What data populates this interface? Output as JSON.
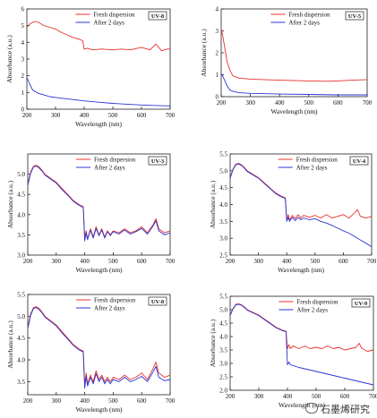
{
  "colors": {
    "fresh": "#e8302a",
    "after": "#2a35d4",
    "axis": "#222222"
  },
  "watermark": {
    "text": "石墨烯研究",
    "icon": "wechat-icon"
  },
  "chart_data": [
    {
      "type": "line",
      "id": "uv8",
      "badge": "UV-8",
      "xlabel": "Wavelength (nm)",
      "ylabel": "Absorbance (a.u.)",
      "xlim": [
        200,
        700
      ],
      "ylim": [
        0,
        6
      ],
      "xticks": [
        200,
        300,
        400,
        500,
        600,
        700
      ],
      "yticks": [
        0,
        1,
        2,
        3,
        4,
        5,
        6
      ],
      "legend": "top-right",
      "grid": false,
      "series": [
        {
          "name": "Fresh dispersion",
          "color": "fresh",
          "x": [
            200,
            210,
            220,
            230,
            240,
            250,
            260,
            280,
            300,
            320,
            340,
            360,
            380,
            395,
            400,
            410,
            430,
            460,
            500,
            530,
            560,
            600,
            630,
            650,
            670,
            690,
            700
          ],
          "y": [
            4.9,
            5.1,
            5.2,
            5.25,
            5.2,
            5.1,
            5.0,
            4.9,
            4.8,
            4.6,
            4.45,
            4.3,
            4.2,
            4.1,
            3.6,
            3.65,
            3.55,
            3.6,
            3.55,
            3.6,
            3.55,
            3.7,
            3.55,
            3.9,
            3.5,
            3.6,
            3.6
          ]
        },
        {
          "name": "After 2 days",
          "color": "after",
          "x": [
            200,
            210,
            220,
            240,
            260,
            280,
            300,
            350,
            400,
            450,
            500,
            550,
            600,
            650,
            700
          ],
          "y": [
            1.9,
            1.5,
            1.15,
            0.95,
            0.85,
            0.75,
            0.7,
            0.6,
            0.5,
            0.42,
            0.35,
            0.3,
            0.25,
            0.22,
            0.2
          ]
        }
      ]
    },
    {
      "type": "line",
      "id": "uv5",
      "badge": "UV-5",
      "xlabel": "Wavelength (nm)",
      "ylabel": "Absorbance (a.u.)",
      "xlim": [
        200,
        700
      ],
      "ylim": [
        0,
        4
      ],
      "xticks": [
        200,
        300,
        400,
        500,
        600,
        700
      ],
      "yticks": [
        0,
        1,
        2,
        3,
        4
      ],
      "legend": "top-right",
      "grid": false,
      "series": [
        {
          "name": "Fresh dispersion",
          "color": "fresh",
          "x": [
            200,
            205,
            210,
            215,
            220,
            230,
            240,
            260,
            300,
            400,
            500,
            560,
            600,
            650,
            700
          ],
          "y": [
            3.1,
            2.8,
            2.4,
            2.0,
            1.6,
            1.2,
            0.95,
            0.85,
            0.8,
            0.75,
            0.72,
            0.7,
            0.72,
            0.75,
            0.78
          ]
        },
        {
          "name": "After 2 days",
          "color": "after",
          "x": [
            200,
            205,
            210,
            220,
            230,
            240,
            260,
            300,
            400,
            500,
            600,
            700
          ],
          "y": [
            1.05,
            0.95,
            0.8,
            0.5,
            0.3,
            0.25,
            0.18,
            0.15,
            0.12,
            0.1,
            0.08,
            0.08
          ]
        }
      ]
    },
    {
      "type": "line",
      "id": "uv3",
      "badge": "UV-3",
      "xlabel": "Wavelength (nm)",
      "ylabel": "Absorbance (a.u.)",
      "xlim": [
        200,
        700
      ],
      "ylim": [
        3.0,
        5.5
      ],
      "xticks": [
        200,
        300,
        400,
        500,
        600,
        700
      ],
      "yticks": [
        3.0,
        3.5,
        4.0,
        4.5,
        5.0
      ],
      "legend": "top-right",
      "grid": false,
      "series": [
        {
          "name": "Fresh dispersion",
          "color": "fresh",
          "x": [
            200,
            210,
            220,
            230,
            240,
            250,
            260,
            280,
            300,
            320,
            340,
            360,
            380,
            395,
            400,
            405,
            410,
            420,
            430,
            440,
            450,
            460,
            470,
            480,
            490,
            500,
            520,
            540,
            560,
            580,
            600,
            620,
            640,
            650,
            660,
            680,
            700
          ],
          "y": [
            4.75,
            5.05,
            5.2,
            5.22,
            5.18,
            5.1,
            5.0,
            4.9,
            4.8,
            4.65,
            4.5,
            4.35,
            4.25,
            4.2,
            3.4,
            3.6,
            3.4,
            3.65,
            3.45,
            3.7,
            3.5,
            3.65,
            3.45,
            3.6,
            3.5,
            3.6,
            3.55,
            3.65,
            3.55,
            3.6,
            3.7,
            3.55,
            3.75,
            3.9,
            3.65,
            3.55,
            3.6
          ]
        },
        {
          "name": "After 2 days",
          "color": "after",
          "x": [
            200,
            210,
            220,
            230,
            240,
            250,
            260,
            280,
            300,
            320,
            340,
            360,
            380,
            395,
            400,
            405,
            410,
            420,
            430,
            440,
            450,
            460,
            470,
            480,
            490,
            500,
            520,
            540,
            560,
            580,
            600,
            620,
            640,
            650,
            660,
            680,
            700
          ],
          "y": [
            4.72,
            5.02,
            5.18,
            5.2,
            5.15,
            5.08,
            4.98,
            4.88,
            4.78,
            4.62,
            4.48,
            4.33,
            4.23,
            4.18,
            3.35,
            3.55,
            3.38,
            3.62,
            3.42,
            3.66,
            3.48,
            3.62,
            3.42,
            3.58,
            3.48,
            3.58,
            3.52,
            3.62,
            3.52,
            3.58,
            3.66,
            3.52,
            3.72,
            3.85,
            3.6,
            3.5,
            3.55
          ]
        }
      ]
    },
    {
      "type": "line",
      "id": "uv4",
      "badge": "UV-4",
      "xlabel": "Wavelength (nm)",
      "ylabel": "Absorbance (a.u.)",
      "xlim": [
        200,
        700
      ],
      "ylim": [
        2.5,
        5.5
      ],
      "xticks": [
        200,
        300,
        400,
        500,
        600,
        700
      ],
      "yticks": [
        2.5,
        3.0,
        3.5,
        4.0,
        4.5,
        5.0,
        5.5
      ],
      "legend": "top-right",
      "grid": false,
      "series": [
        {
          "name": "Fresh dispersion",
          "color": "fresh",
          "x": [
            200,
            210,
            220,
            230,
            240,
            250,
            260,
            280,
            300,
            320,
            340,
            360,
            380,
            395,
            400,
            405,
            410,
            420,
            430,
            440,
            450,
            460,
            480,
            500,
            520,
            540,
            560,
            580,
            600,
            620,
            640,
            650,
            660,
            680,
            700
          ],
          "y": [
            4.8,
            5.05,
            5.2,
            5.22,
            5.18,
            5.1,
            5.0,
            4.9,
            4.8,
            4.65,
            4.5,
            4.35,
            4.25,
            4.2,
            3.55,
            3.7,
            3.55,
            3.68,
            3.58,
            3.7,
            3.6,
            3.68,
            3.62,
            3.68,
            3.6,
            3.7,
            3.6,
            3.65,
            3.7,
            3.6,
            3.75,
            3.85,
            3.65,
            3.6,
            3.65
          ]
        },
        {
          "name": "After 2 days",
          "color": "after",
          "x": [
            200,
            210,
            220,
            230,
            240,
            250,
            260,
            280,
            300,
            320,
            340,
            360,
            380,
            395,
            400,
            405,
            410,
            420,
            430,
            440,
            450,
            460,
            480,
            500,
            520,
            540,
            560,
            580,
            600,
            620,
            640,
            660,
            680,
            700
          ],
          "y": [
            4.78,
            5.03,
            5.18,
            5.2,
            5.16,
            5.08,
            4.98,
            4.88,
            4.78,
            4.63,
            4.48,
            4.33,
            4.23,
            4.18,
            3.5,
            3.62,
            3.5,
            3.62,
            3.52,
            3.62,
            3.55,
            3.6,
            3.55,
            3.58,
            3.5,
            3.45,
            3.38,
            3.3,
            3.22,
            3.15,
            3.05,
            2.95,
            2.85,
            2.75
          ]
        }
      ]
    },
    {
      "type": "line",
      "id": "uv8b",
      "badge": "UV-8",
      "xlabel": "Wavelength (nm)",
      "ylabel": "Absorbance (a.u.)",
      "xlim": [
        200,
        700
      ],
      "ylim": [
        3.2,
        5.5
      ],
      "xticks": [
        200,
        300,
        400,
        500,
        600,
        700
      ],
      "yticks": [
        3.5,
        4.0,
        4.5,
        5.0,
        5.5
      ],
      "legend": "top-right",
      "grid": false,
      "series": [
        {
          "name": "Fresh dispersion",
          "color": "fresh",
          "x": [
            200,
            210,
            220,
            230,
            240,
            250,
            260,
            280,
            300,
            320,
            340,
            360,
            380,
            395,
            400,
            405,
            410,
            420,
            430,
            440,
            450,
            460,
            470,
            480,
            490,
            500,
            520,
            540,
            560,
            580,
            600,
            620,
            640,
            650,
            660,
            680,
            700
          ],
          "y": [
            4.75,
            5.05,
            5.2,
            5.22,
            5.18,
            5.1,
            5.0,
            4.9,
            4.8,
            4.65,
            4.5,
            4.35,
            4.25,
            4.2,
            3.4,
            3.7,
            3.45,
            3.65,
            3.5,
            3.75,
            3.55,
            3.65,
            3.5,
            3.6,
            3.5,
            3.6,
            3.55,
            3.65,
            3.55,
            3.6,
            3.7,
            3.55,
            3.8,
            3.95,
            3.7,
            3.6,
            3.65
          ]
        },
        {
          "name": "After 2 days",
          "color": "after",
          "x": [
            200,
            210,
            220,
            230,
            240,
            250,
            260,
            280,
            300,
            320,
            340,
            360,
            380,
            395,
            400,
            405,
            410,
            420,
            430,
            440,
            450,
            460,
            470,
            480,
            490,
            500,
            520,
            540,
            560,
            580,
            600,
            620,
            640,
            650,
            660,
            680,
            700
          ],
          "y": [
            4.72,
            5.02,
            5.18,
            5.2,
            5.15,
            5.08,
            4.98,
            4.88,
            4.78,
            4.62,
            4.48,
            4.33,
            4.23,
            4.18,
            3.35,
            3.62,
            3.4,
            3.6,
            3.45,
            3.68,
            3.5,
            3.6,
            3.45,
            3.55,
            3.45,
            3.55,
            3.5,
            3.6,
            3.5,
            3.55,
            3.62,
            3.5,
            3.72,
            3.85,
            3.6,
            3.52,
            3.55
          ]
        }
      ]
    },
    {
      "type": "line",
      "id": "uv9",
      "badge": "UV-9",
      "xlabel": "Wavelength (nm)",
      "ylabel": "Absorbance (a.u.)",
      "xlim": [
        200,
        700
      ],
      "ylim": [
        2.0,
        5.5
      ],
      "xticks": [
        200,
        300,
        400,
        500,
        600,
        700
      ],
      "yticks": [
        2.0,
        2.5,
        3.0,
        3.5,
        4.0,
        4.5,
        5.0,
        5.5
      ],
      "legend": "top-right",
      "grid": false,
      "series": [
        {
          "name": "Fresh dispersion",
          "color": "fresh",
          "x": [
            200,
            210,
            220,
            230,
            240,
            250,
            260,
            280,
            300,
            320,
            340,
            360,
            380,
            395,
            400,
            405,
            410,
            420,
            440,
            460,
            480,
            500,
            520,
            540,
            560,
            580,
            600,
            620,
            640,
            650,
            660,
            680,
            700
          ],
          "y": [
            4.8,
            5.05,
            5.2,
            5.22,
            5.18,
            5.1,
            5.0,
            4.9,
            4.8,
            4.65,
            4.5,
            4.35,
            4.25,
            4.2,
            3.55,
            3.7,
            3.55,
            3.65,
            3.55,
            3.65,
            3.55,
            3.6,
            3.55,
            3.65,
            3.55,
            3.6,
            3.5,
            3.55,
            3.6,
            3.75,
            3.55,
            3.45,
            3.5
          ]
        },
        {
          "name": "After 2 days",
          "color": "after",
          "x": [
            200,
            210,
            220,
            230,
            240,
            250,
            260,
            280,
            300,
            320,
            340,
            360,
            380,
            395,
            400,
            405,
            410,
            420,
            440,
            460,
            480,
            500,
            520,
            540,
            560,
            580,
            600,
            620,
            640,
            660,
            680,
            700
          ],
          "y": [
            4.78,
            5.03,
            5.18,
            5.2,
            5.16,
            5.08,
            4.98,
            4.88,
            4.78,
            4.63,
            4.48,
            4.33,
            4.23,
            4.18,
            2.95,
            3.05,
            2.95,
            2.92,
            2.85,
            2.8,
            2.75,
            2.7,
            2.65,
            2.6,
            2.55,
            2.5,
            2.45,
            2.4,
            2.35,
            2.3,
            2.25,
            2.2
          ]
        }
      ]
    }
  ]
}
